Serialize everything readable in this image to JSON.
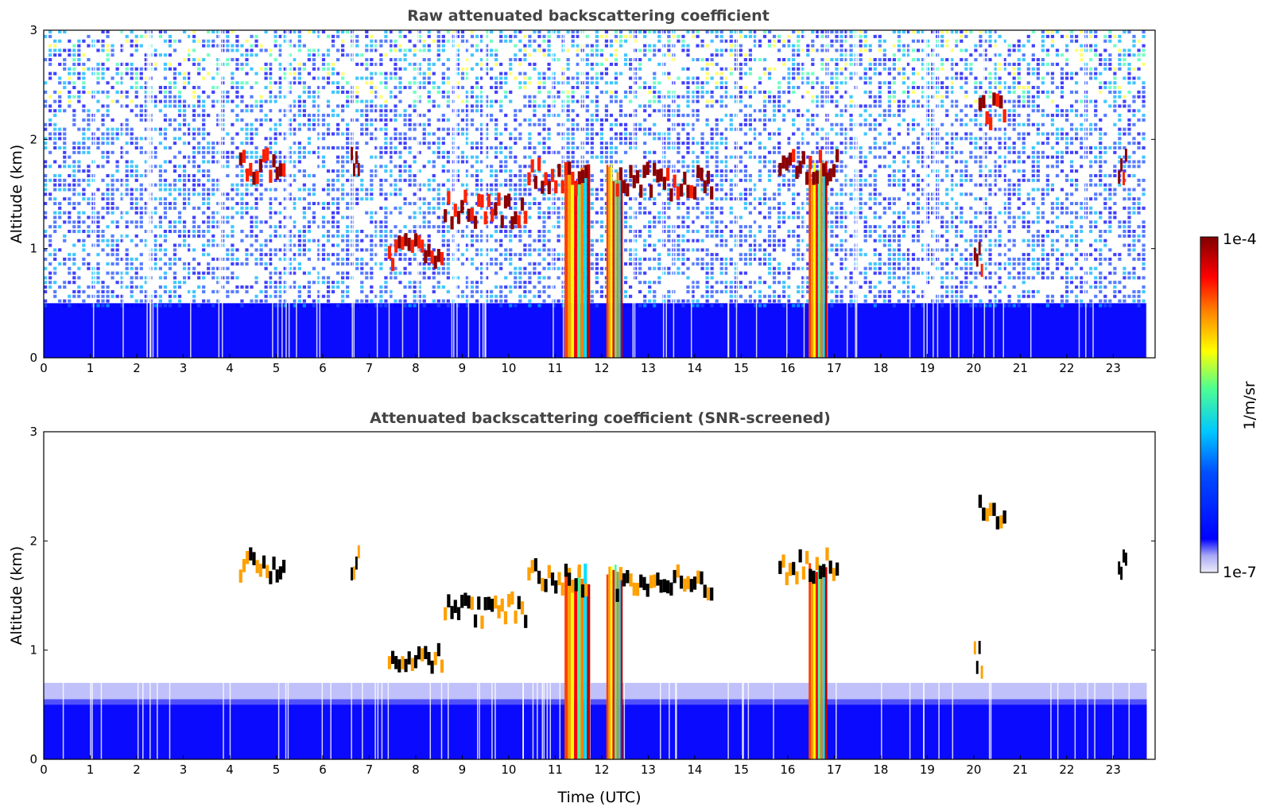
{
  "chart_data": [
    {
      "type": "heatmap",
      "title": "Raw attenuated backscattering coefficient",
      "xlabel": "",
      "ylabel": "Altitude (km)",
      "xlim": [
        0,
        23.9
      ],
      "ylim": [
        0,
        3
      ],
      "xticks": [
        "0",
        "1",
        "2",
        "3",
        "4",
        "5",
        "6",
        "7",
        "8",
        "9",
        "10",
        "11",
        "12",
        "13",
        "14",
        "15",
        "16",
        "17",
        "18",
        "19",
        "20",
        "21",
        "22",
        "23"
      ],
      "yticks": [
        "0",
        "1",
        "2",
        "3"
      ],
      "boundary_layer_top_km": 0.5,
      "cloud_features": [
        {
          "t_start": 4.2,
          "t_end": 5.2,
          "alt_km": 1.7
        },
        {
          "t_start": 6.6,
          "t_end": 6.8,
          "alt_km": 1.75
        },
        {
          "t_start": 7.4,
          "t_end": 8.6,
          "alt_km": 0.9
        },
        {
          "t_start": 8.6,
          "t_end": 10.4,
          "alt_km": 1.3
        },
        {
          "t_start": 10.4,
          "t_end": 11.7,
          "alt_km": 1.6
        },
        {
          "t_start": 12.3,
          "t_end": 14.4,
          "alt_km": 1.55
        },
        {
          "t_start": 15.8,
          "t_end": 17.1,
          "alt_km": 1.7
        },
        {
          "t_start": 20.1,
          "t_end": 20.7,
          "alt_km": 2.2
        },
        {
          "t_start": 20.0,
          "t_end": 20.2,
          "alt_km": 0.85
        },
        {
          "t_start": 23.1,
          "t_end": 23.3,
          "alt_km": 1.7
        }
      ],
      "precipitation_columns": [
        {
          "t_start": 11.2,
          "t_end": 11.75
        },
        {
          "t_start": 12.1,
          "t_end": 12.45
        },
        {
          "t_start": 16.45,
          "t_end": 16.85
        }
      ]
    },
    {
      "type": "heatmap",
      "title": "Attenuated backscattering coefficient (SNR-screened)",
      "xlabel": "Time (UTC)",
      "ylabel": "Altitude (km)",
      "xlim": [
        0,
        23.9
      ],
      "ylim": [
        0,
        3
      ],
      "xticks": [
        "0",
        "1",
        "2",
        "3",
        "4",
        "5",
        "6",
        "7",
        "8",
        "9",
        "10",
        "11",
        "12",
        "13",
        "14",
        "15",
        "16",
        "17",
        "18",
        "19",
        "20",
        "21",
        "22",
        "23"
      ],
      "yticks": [
        "0",
        "1",
        "2",
        "3"
      ],
      "boundary_layer_top_km": 0.55
    }
  ],
  "colorbar": {
    "label": "1/m/sr",
    "max_label": "1e-4",
    "min_label": "1e-7",
    "colors": [
      "#e6e6f5",
      "#0000ff",
      "#00c8ff",
      "#ffff00",
      "#ff0000",
      "#800000"
    ]
  }
}
